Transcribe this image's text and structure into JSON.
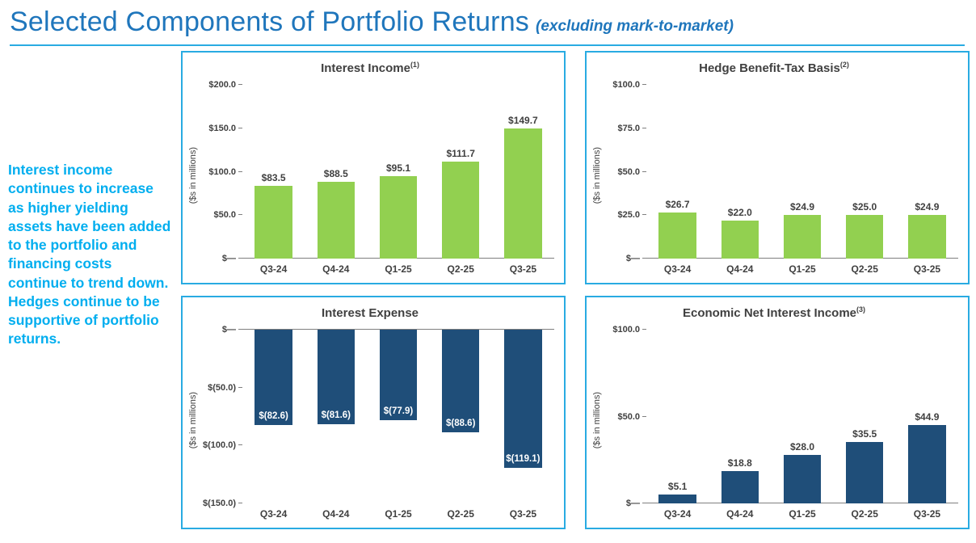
{
  "header": {
    "title": "Selected Components of Portfolio Returns",
    "subtitle": "(excluding mark-to-market)"
  },
  "sidebar": {
    "text": "Interest income continues to increase as higher yielding assets have been added to the portfolio and financing costs continue to trend down. Hedges continue to be supportive of portfolio returns."
  },
  "colors": {
    "title_blue": "#1f76bc",
    "accent_cyan": "#29abe2",
    "sidebar_cyan": "#00aeef",
    "bar_green": "#92d050",
    "bar_navy": "#1f4e79",
    "text_gray": "#404040"
  },
  "chart_data": [
    {
      "type": "bar",
      "title": "Interest Income",
      "note": "(1)",
      "ylabel": "($s in millions)",
      "categories": [
        "Q3-24",
        "Q4-24",
        "Q1-25",
        "Q2-25",
        "Q3-25"
      ],
      "values": [
        83.5,
        88.5,
        95.1,
        111.7,
        149.7
      ],
      "labels": [
        "$83.5",
        "$88.5",
        "$95.1",
        "$111.7",
        "$149.7"
      ],
      "ylim": [
        0,
        200
      ],
      "yticks": [
        {
          "v": 0,
          "label": "$—"
        },
        {
          "v": 50,
          "label": "$50.0"
        },
        {
          "v": 100,
          "label": "$100.0"
        },
        {
          "v": 150,
          "label": "$150.0"
        },
        {
          "v": 200,
          "label": "$200.0"
        }
      ],
      "bar_color": "#92d050",
      "label_style": "above",
      "grid": false,
      "legend": false
    },
    {
      "type": "bar",
      "title": "Hedge Benefit-Tax Basis",
      "note": "(2)",
      "ylabel": "($s in millions)",
      "categories": [
        "Q3-24",
        "Q4-24",
        "Q1-25",
        "Q2-25",
        "Q3-25"
      ],
      "values": [
        26.7,
        22.0,
        24.9,
        25.0,
        24.9
      ],
      "labels": [
        "$26.7",
        "$22.0",
        "$24.9",
        "$25.0",
        "$24.9"
      ],
      "ylim": [
        0,
        100
      ],
      "yticks": [
        {
          "v": 0,
          "label": "$—"
        },
        {
          "v": 25,
          "label": "$25.0"
        },
        {
          "v": 50,
          "label": "$50.0"
        },
        {
          "v": 75,
          "label": "$75.0"
        },
        {
          "v": 100,
          "label": "$100.0"
        }
      ],
      "bar_color": "#92d050",
      "label_style": "above",
      "grid": false,
      "legend": false
    },
    {
      "type": "bar",
      "title": "Interest Expense",
      "note": "",
      "ylabel": "($s in millions)",
      "categories": [
        "Q3-24",
        "Q4-24",
        "Q1-25",
        "Q2-25",
        "Q3-25"
      ],
      "values": [
        -82.6,
        -81.6,
        -77.9,
        -88.6,
        -119.1
      ],
      "labels": [
        "$(82.6)",
        "$(81.6)",
        "$(77.9)",
        "$(88.6)",
        "$(119.1)"
      ],
      "ylim": [
        -150,
        0
      ],
      "yticks": [
        {
          "v": 0,
          "label": "$—"
        },
        {
          "v": -50,
          "label": "$(50.0)"
        },
        {
          "v": -100,
          "label": "$(100.0)"
        },
        {
          "v": -150,
          "label": "$(150.0)"
        }
      ],
      "bar_color": "#1f4e79",
      "label_style": "inside",
      "grid": false,
      "legend": false
    },
    {
      "type": "bar",
      "title": "Economic Net Interest Income",
      "note": "(3)",
      "ylabel": "($s in millions)",
      "categories": [
        "Q3-24",
        "Q4-24",
        "Q1-25",
        "Q2-25",
        "Q3-25"
      ],
      "values": [
        5.1,
        18.8,
        28.0,
        35.5,
        44.9
      ],
      "labels": [
        "$5.1",
        "$18.8",
        "$28.0",
        "$35.5",
        "$44.9"
      ],
      "ylim": [
        0,
        100
      ],
      "yticks": [
        {
          "v": 0,
          "label": "$—"
        },
        {
          "v": 50,
          "label": "$50.0"
        },
        {
          "v": 100,
          "label": "$100.0"
        }
      ],
      "bar_color": "#1f4e79",
      "label_style": "above",
      "grid": false,
      "legend": false
    }
  ]
}
